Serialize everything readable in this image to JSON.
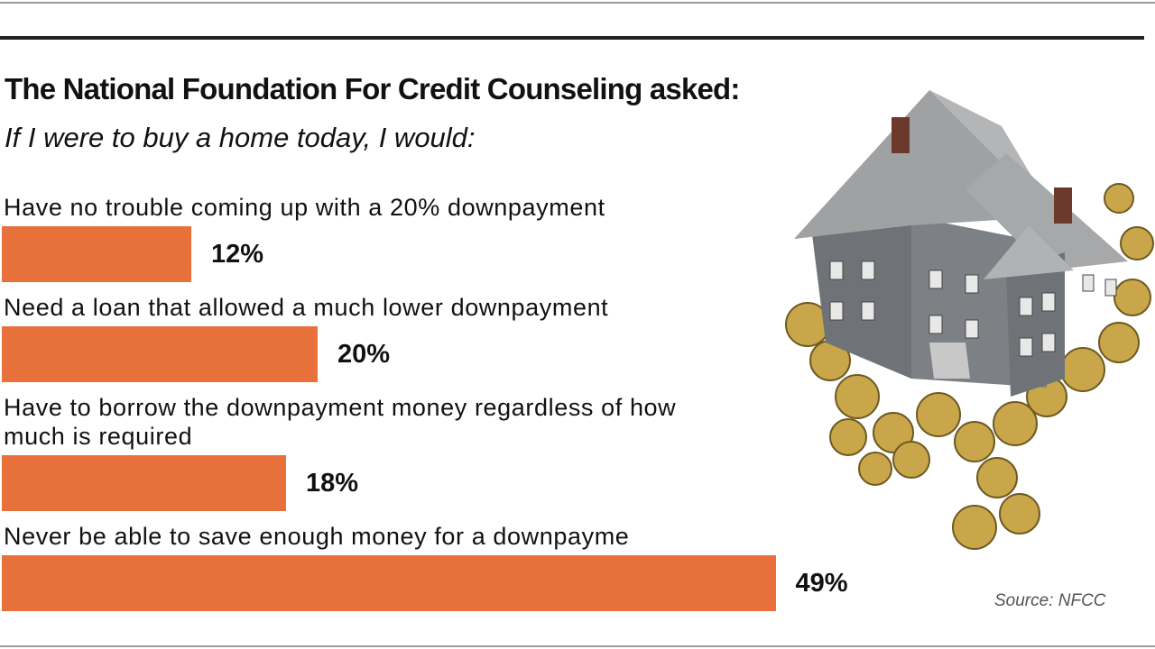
{
  "chart_data": {
    "type": "bar",
    "title": "The National Foundation For Credit Counseling asked:",
    "subtitle": "If I were to buy a home today, I would:",
    "categories": [
      "Have no trouble coming up with a 20% downpayment",
      "Need a loan that allowed a much lower downpayment",
      "Have to borrow the downpayment money regardless of how much is required",
      "Never be able to save enough money for a downpayme"
    ],
    "values": [
      12,
      20,
      18,
      49
    ],
    "value_labels": [
      "12%",
      "20%",
      "18%",
      "49%"
    ],
    "color": "#e8703a",
    "source": "Source: NFCC"
  }
}
